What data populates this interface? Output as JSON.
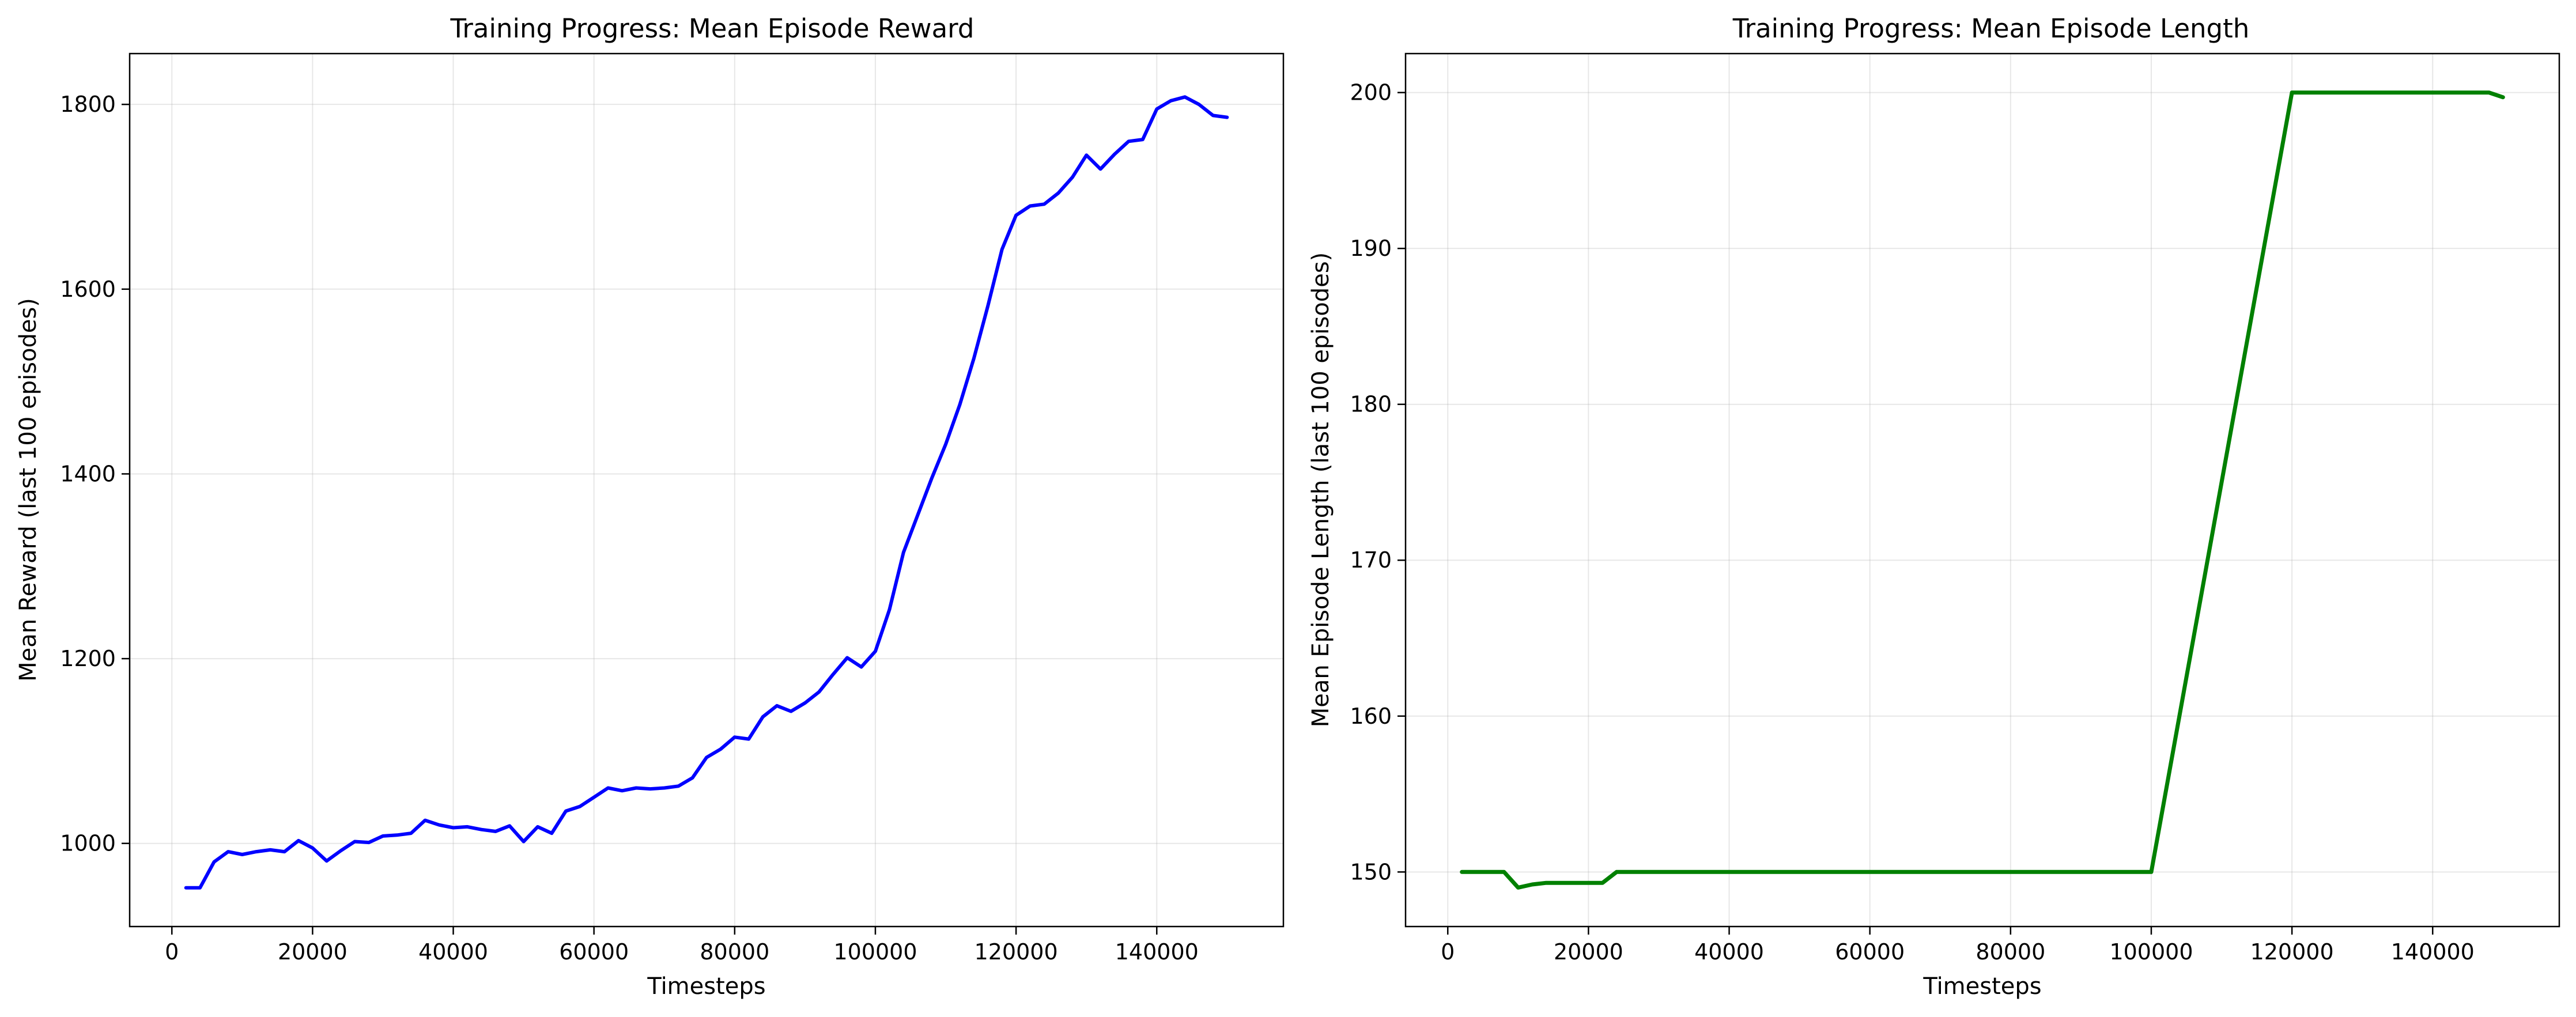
{
  "chart_data": [
    {
      "type": "line",
      "title": "Training Progress: Mean Episode Reward",
      "xlabel": "Timesteps",
      "ylabel": "Mean Reward (last 100 episodes)",
      "xlim": [
        -6000,
        158000
      ],
      "ylim": [
        910,
        1855
      ],
      "xticks": [
        0,
        20000,
        40000,
        60000,
        80000,
        100000,
        120000,
        140000
      ],
      "yticks": [
        1000,
        1200,
        1400,
        1600,
        1800
      ],
      "grid": true,
      "colors": {
        "line": "#0000ff"
      },
      "series": [
        {
          "x": [
            2000,
            4000,
            6000,
            8000,
            10000,
            12000,
            14000,
            16000,
            18000,
            20000,
            22000,
            24000,
            26000,
            28000,
            30000,
            32000,
            34000,
            36000,
            38000,
            40000,
            42000,
            44000,
            46000,
            48000,
            50000,
            52000,
            54000,
            56000,
            58000,
            60000,
            62000,
            64000,
            66000,
            68000,
            70000,
            72000,
            74000,
            76000,
            78000,
            80000,
            82000,
            84000,
            86000,
            88000,
            90000,
            92000,
            94000,
            96000,
            98000,
            100000,
            102000,
            104000,
            106000,
            108000,
            110000,
            112000,
            114000,
            116000,
            118000,
            120000,
            122000,
            124000,
            126000,
            128000,
            130000,
            132000,
            134000,
            136000,
            138000,
            140000,
            142000,
            144000,
            146000,
            148000,
            150000
          ],
          "values": [
            952,
            952,
            980,
            991,
            988,
            991,
            993,
            991,
            1003,
            995,
            981,
            992,
            1002,
            1001,
            1008,
            1009,
            1011,
            1025,
            1020,
            1017,
            1018,
            1015,
            1013,
            1019,
            1002,
            1018,
            1011,
            1035,
            1040,
            1050,
            1060,
            1057,
            1060,
            1059,
            1060,
            1062,
            1071,
            1093,
            1102,
            1115,
            1113,
            1137,
            1149,
            1143,
            1152,
            1164,
            1183,
            1201,
            1191,
            1208,
            1253,
            1315,
            1355,
            1395,
            1432,
            1475,
            1525,
            1582,
            1643,
            1680,
            1690,
            1692,
            1704,
            1721,
            1745,
            1730,
            1746,
            1760,
            1762,
            1795,
            1804,
            1808,
            1800,
            1788,
            1786
          ]
        }
      ]
    },
    {
      "type": "line",
      "title": "Training Progress: Mean Episode Length",
      "xlabel": "Timesteps",
      "ylabel": "Mean Episode Length (last 100 episodes)",
      "xlim": [
        -6000,
        158000
      ],
      "ylim": [
        146.5,
        202.5
      ],
      "xticks": [
        0,
        20000,
        40000,
        60000,
        80000,
        100000,
        120000,
        140000
      ],
      "yticks": [
        150,
        160,
        170,
        180,
        190,
        200
      ],
      "grid": true,
      "colors": {
        "line": "#008000"
      },
      "series": [
        {
          "x": [
            2000,
            4000,
            6000,
            8000,
            10000,
            12000,
            14000,
            16000,
            18000,
            20000,
            22000,
            24000,
            26000,
            100000,
            120000,
            148000,
            150000
          ],
          "values": [
            150,
            150,
            150,
            150,
            149.0,
            149.2,
            149.3,
            149.3,
            149.3,
            149.3,
            149.3,
            150,
            150,
            150,
            200,
            200,
            199.7
          ]
        }
      ]
    }
  ]
}
